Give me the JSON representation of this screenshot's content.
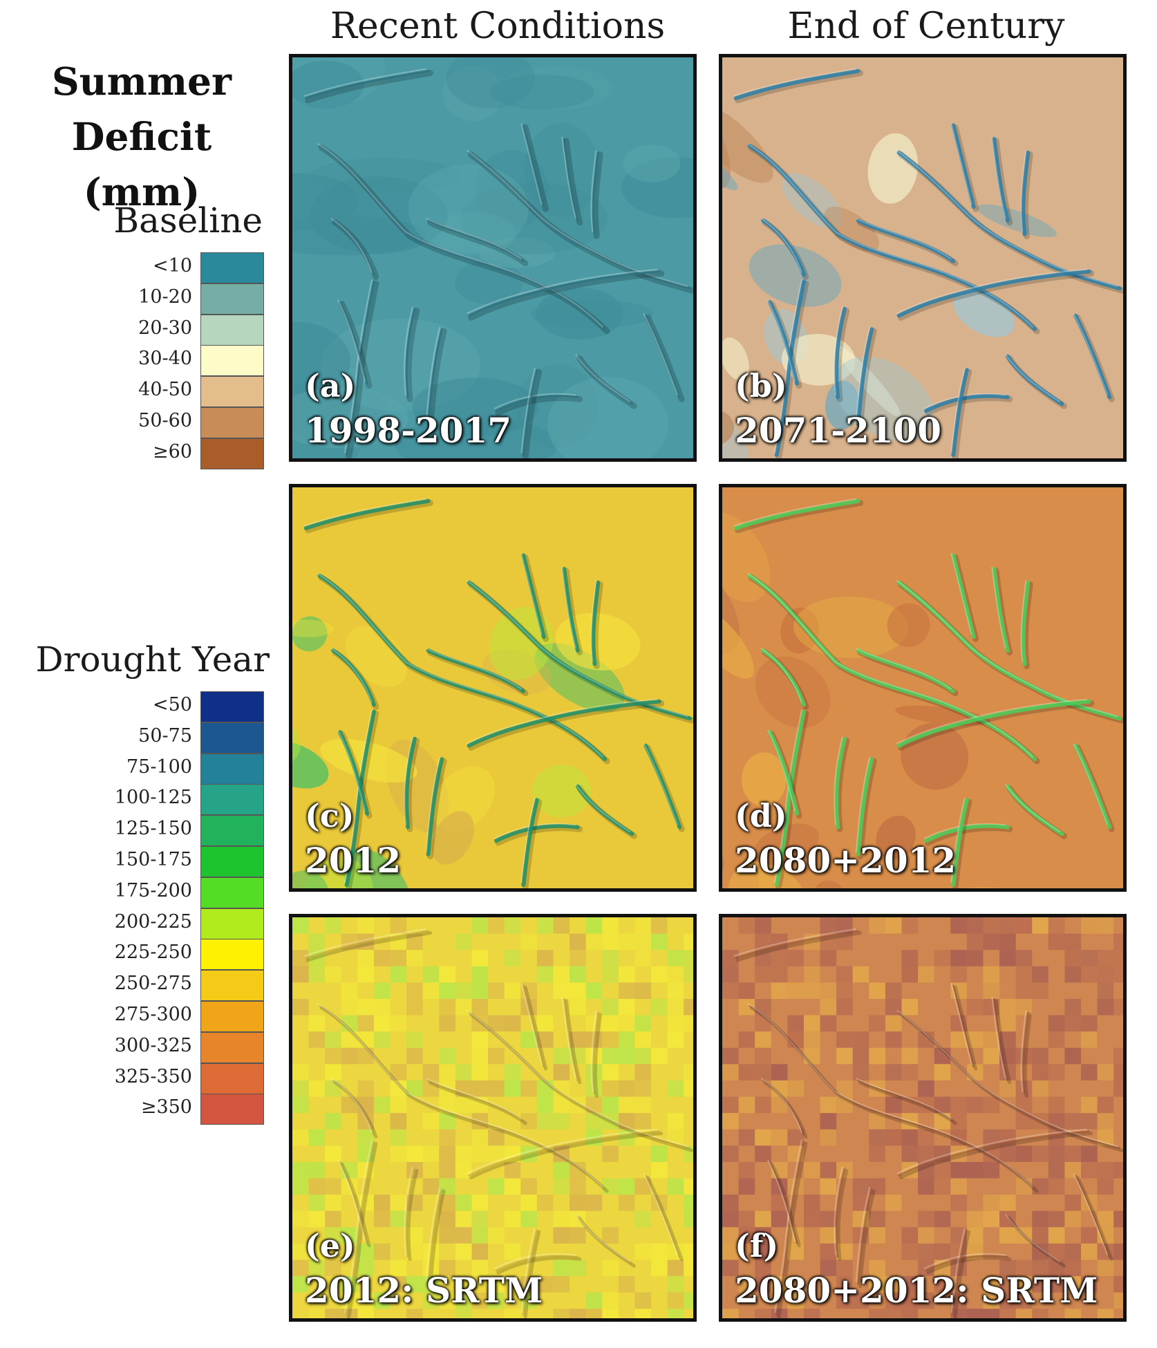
{
  "figure": {
    "title_line1": "Summer",
    "title_line2": "Deficit (mm)",
    "columns": [
      "Recent Conditions",
      "End of Century"
    ]
  },
  "legend_baseline": {
    "title": "Baseline",
    "items": [
      {
        "label": "<10",
        "color": "#2a8a9b"
      },
      {
        "label": "10-20",
        "color": "#76aea6"
      },
      {
        "label": "20-30",
        "color": "#b6d6bd"
      },
      {
        "label": "30-40",
        "color": "#fdfbc8"
      },
      {
        "label": "40-50",
        "color": "#e4bd8d"
      },
      {
        "label": "50-60",
        "color": "#c78c58"
      },
      {
        "label": "≥60",
        "color": "#a95d29"
      }
    ]
  },
  "legend_drought": {
    "title": "Drought Year",
    "items": [
      {
        "label": "<50",
        "color": "#102f88"
      },
      {
        "label": "50-75",
        "color": "#1d5790"
      },
      {
        "label": "75-100",
        "color": "#23829a"
      },
      {
        "label": "100-125",
        "color": "#25a488"
      },
      {
        "label": "125-150",
        "color": "#22b25c"
      },
      {
        "label": "150-175",
        "color": "#1ec42e"
      },
      {
        "label": "175-200",
        "color": "#55dc25"
      },
      {
        "label": "200-225",
        "color": "#b0ec1d"
      },
      {
        "label": "225-250",
        "color": "#fff200"
      },
      {
        "label": "250-275",
        "color": "#f6cb18"
      },
      {
        "label": "275-300",
        "color": "#f0a519"
      },
      {
        "label": "300-325",
        "color": "#e6852a"
      },
      {
        "label": "325-350",
        "color": "#de6a36"
      },
      {
        "label": "≥350",
        "color": "#d35540"
      }
    ]
  },
  "panels": [
    {
      "letter": "(a)",
      "caption": "1998-2017",
      "base_color": "#4b9aa4",
      "patch_colors": [
        "#3f8d99",
        "#5aa6ad"
      ],
      "stream_color": "#2f7380"
    },
    {
      "letter": "(b)",
      "caption": "2071-2100",
      "base_color": "#d8b28c",
      "patch_colors": [
        "#5fa7c4",
        "#f2ecc9",
        "#c18a5d",
        "#9cc8d8"
      ],
      "stream_color": "#2b7fa8"
    },
    {
      "letter": "(c)",
      "caption": "2012",
      "base_color": "#e9c93a",
      "patch_colors": [
        "#d9b24a",
        "#b9e63b",
        "#f5e23d",
        "#3fbf6a"
      ],
      "stream_color": "#1f8f6a"
    },
    {
      "letter": "(d)",
      "caption": "2080+2012",
      "base_color": "#d88d4a",
      "patch_colors": [
        "#c9743f",
        "#eab046",
        "#b96640"
      ],
      "stream_color": "#4bcf5a"
    },
    {
      "letter": "(e)",
      "caption": "2012: SRTM",
      "base_color": "#ecd740",
      "patch_colors": [
        "#d8b14c",
        "#b8e64a",
        "#f4ea3a"
      ],
      "stream_color": "#b89b3a"
    },
    {
      "letter": "(f)",
      "caption": "2080+2012: SRTM",
      "base_color": "#cf8650",
      "patch_colors": [
        "#b86a50",
        "#e3a94a",
        "#a85e52"
      ],
      "stream_color": "#8a4a30"
    }
  ]
}
